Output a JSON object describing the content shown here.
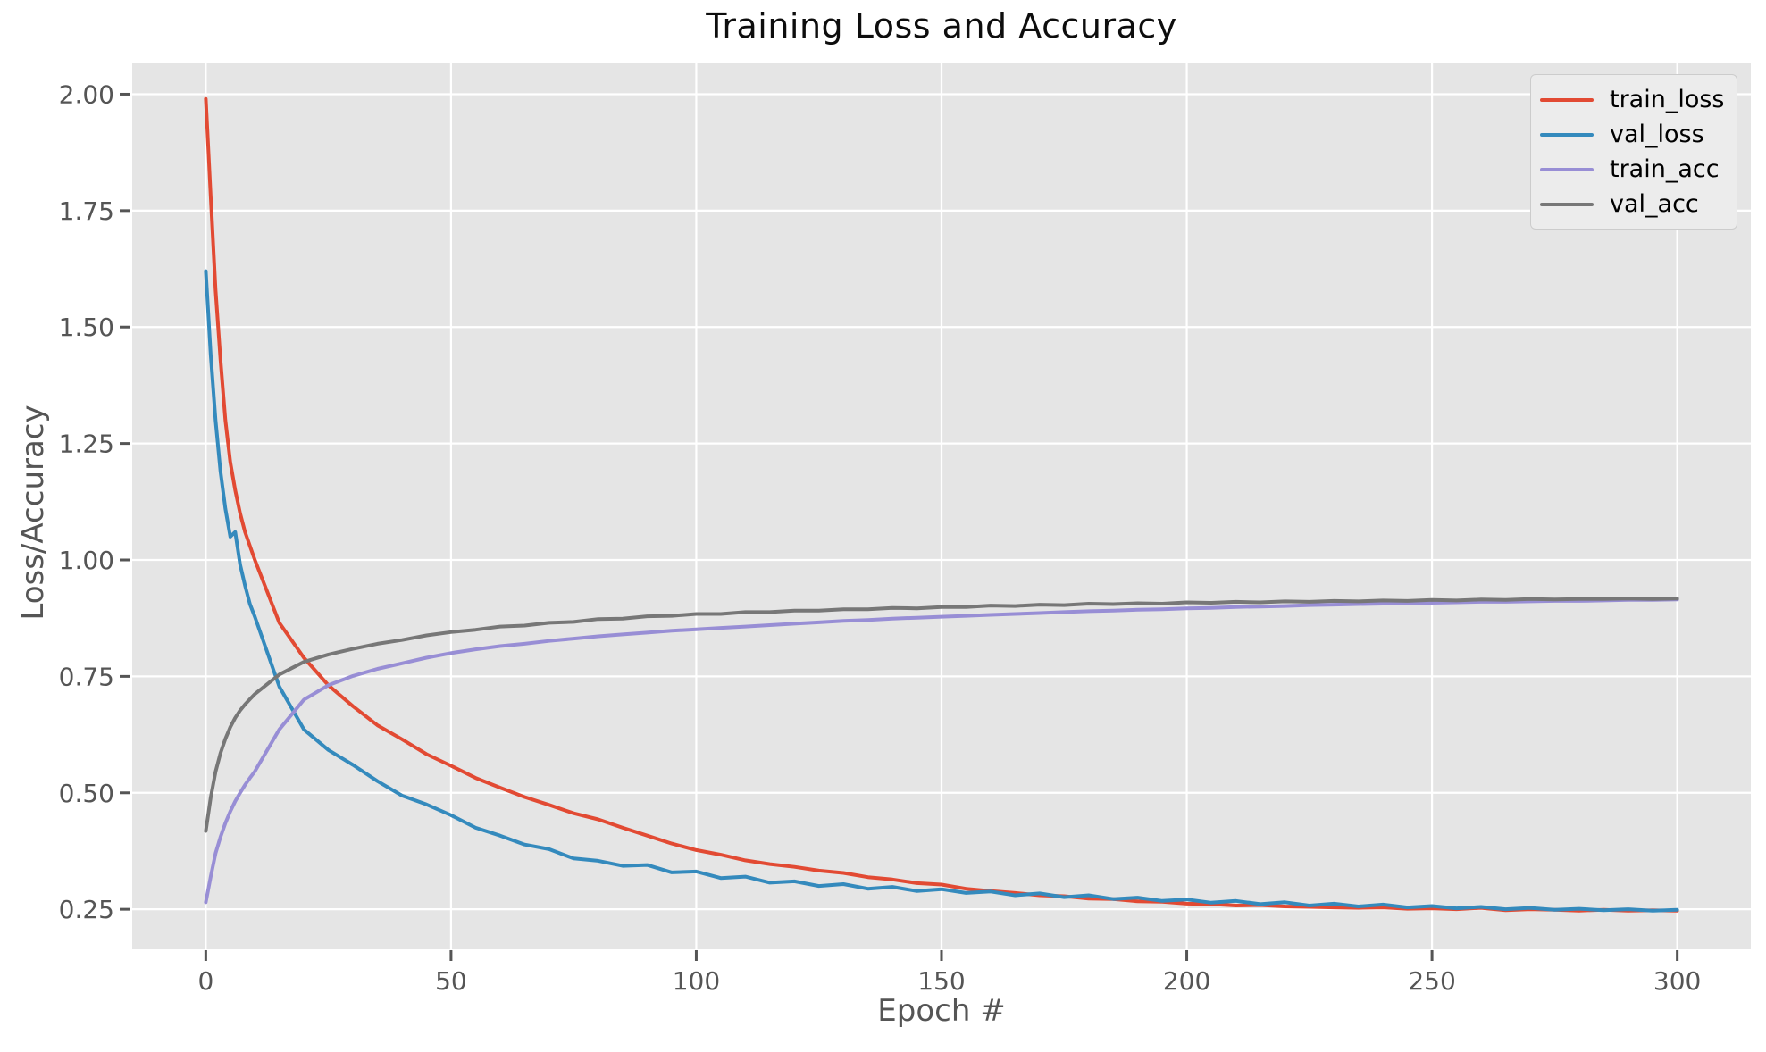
{
  "figure": {
    "title": "Training Loss and Accuracy",
    "xlabel": "Epoch #",
    "ylabel": "Loss/Accuracy",
    "background_color": "#ffffff",
    "axes_background_color": "#e5e5e5",
    "grid_color": "#ffffff",
    "tick_color": "#555555",
    "label_color": "#555555",
    "title_color": "#0d0d0d"
  },
  "chart_data": {
    "type": "line",
    "title": "Training Loss and Accuracy",
    "xlabel": "Epoch #",
    "ylabel": "Loss/Accuracy",
    "grid": true,
    "legend_position": "upper right",
    "xlim": [
      -15,
      315
    ],
    "ylim": [
      0.164,
      2.068
    ],
    "x_ticks": [
      0,
      50,
      100,
      150,
      200,
      250,
      300
    ],
    "x_tick_labels": [
      "0",
      "50",
      "100",
      "150",
      "200",
      "250",
      "300"
    ],
    "y_ticks": [
      0.25,
      0.5,
      0.75,
      1.0,
      1.25,
      1.5,
      1.75,
      2.0
    ],
    "y_tick_labels": [
      "0.25",
      "0.50",
      "0.75",
      "1.00",
      "1.25",
      "1.50",
      "1.75",
      "2.00"
    ],
    "x": [
      0,
      1,
      2,
      3,
      4,
      5,
      6,
      7,
      8,
      9,
      10,
      15,
      20,
      25,
      30,
      35,
      40,
      45,
      50,
      55,
      60,
      65,
      70,
      75,
      80,
      85,
      90,
      95,
      100,
      105,
      110,
      115,
      120,
      125,
      130,
      135,
      140,
      145,
      150,
      155,
      160,
      165,
      170,
      175,
      180,
      185,
      190,
      195,
      200,
      205,
      210,
      215,
      220,
      225,
      230,
      235,
      240,
      245,
      250,
      255,
      260,
      265,
      270,
      275,
      280,
      285,
      290,
      295,
      300
    ],
    "series": [
      {
        "name": "train_loss",
        "color": "#e24a33",
        "values": [
          1.99,
          1.78,
          1.58,
          1.43,
          1.3,
          1.21,
          1.15,
          1.1,
          1.06,
          1.03,
          1.0,
          0.865,
          0.79,
          0.731,
          0.686,
          0.645,
          0.615,
          0.583,
          0.558,
          0.532,
          0.511,
          0.491,
          0.474,
          0.456,
          0.443,
          0.425,
          0.408,
          0.391,
          0.377,
          0.367,
          0.355,
          0.347,
          0.341,
          0.333,
          0.328,
          0.319,
          0.314,
          0.306,
          0.303,
          0.294,
          0.289,
          0.285,
          0.28,
          0.278,
          0.273,
          0.272,
          0.267,
          0.266,
          0.262,
          0.261,
          0.258,
          0.259,
          0.256,
          0.255,
          0.254,
          0.253,
          0.254,
          0.251,
          0.252,
          0.25,
          0.253,
          0.248,
          0.25,
          0.249,
          0.247,
          0.249,
          0.247,
          0.248,
          0.247
        ]
      },
      {
        "name": "val_loss",
        "color": "#348abd",
        "values": [
          1.62,
          1.44,
          1.3,
          1.19,
          1.11,
          1.05,
          1.06,
          0.99,
          0.945,
          0.905,
          0.878,
          0.728,
          0.636,
          0.592,
          0.56,
          0.525,
          0.494,
          0.475,
          0.452,
          0.425,
          0.408,
          0.389,
          0.379,
          0.359,
          0.354,
          0.343,
          0.345,
          0.329,
          0.331,
          0.317,
          0.32,
          0.307,
          0.31,
          0.3,
          0.304,
          0.294,
          0.298,
          0.289,
          0.293,
          0.285,
          0.288,
          0.28,
          0.284,
          0.276,
          0.28,
          0.272,
          0.275,
          0.268,
          0.271,
          0.264,
          0.268,
          0.261,
          0.265,
          0.258,
          0.262,
          0.256,
          0.26,
          0.254,
          0.257,
          0.252,
          0.255,
          0.25,
          0.253,
          0.249,
          0.251,
          0.248,
          0.25,
          0.247,
          0.249
        ]
      },
      {
        "name": "train_acc",
        "color": "#988ed5",
        "values": [
          0.265,
          0.32,
          0.37,
          0.405,
          0.435,
          0.46,
          0.482,
          0.5,
          0.517,
          0.532,
          0.546,
          0.636,
          0.7,
          0.731,
          0.751,
          0.766,
          0.778,
          0.79,
          0.8,
          0.808,
          0.815,
          0.82,
          0.826,
          0.831,
          0.836,
          0.84,
          0.844,
          0.848,
          0.851,
          0.854,
          0.857,
          0.86,
          0.863,
          0.866,
          0.869,
          0.871,
          0.874,
          0.876,
          0.878,
          0.88,
          0.882,
          0.884,
          0.886,
          0.888,
          0.89,
          0.891,
          0.893,
          0.894,
          0.896,
          0.897,
          0.899,
          0.9,
          0.901,
          0.903,
          0.904,
          0.905,
          0.906,
          0.907,
          0.908,
          0.909,
          0.91,
          0.91,
          0.911,
          0.912,
          0.912,
          0.913,
          0.914,
          0.914,
          0.915
        ]
      },
      {
        "name": "val_acc",
        "color": "#777777",
        "values": [
          0.418,
          0.49,
          0.545,
          0.585,
          0.616,
          0.641,
          0.661,
          0.677,
          0.69,
          0.701,
          0.712,
          0.754,
          0.781,
          0.797,
          0.809,
          0.82,
          0.828,
          0.838,
          0.845,
          0.85,
          0.857,
          0.859,
          0.865,
          0.867,
          0.873,
          0.874,
          0.879,
          0.88,
          0.884,
          0.884,
          0.888,
          0.888,
          0.891,
          0.891,
          0.894,
          0.894,
          0.897,
          0.896,
          0.899,
          0.899,
          0.902,
          0.901,
          0.904,
          0.903,
          0.906,
          0.905,
          0.907,
          0.906,
          0.909,
          0.908,
          0.91,
          0.909,
          0.911,
          0.91,
          0.912,
          0.911,
          0.913,
          0.912,
          0.914,
          0.913,
          0.915,
          0.914,
          0.916,
          0.915,
          0.916,
          0.916,
          0.917,
          0.916,
          0.917
        ]
      }
    ]
  },
  "legend": {
    "items": [
      "train_loss",
      "val_loss",
      "train_acc",
      "val_acc"
    ]
  }
}
